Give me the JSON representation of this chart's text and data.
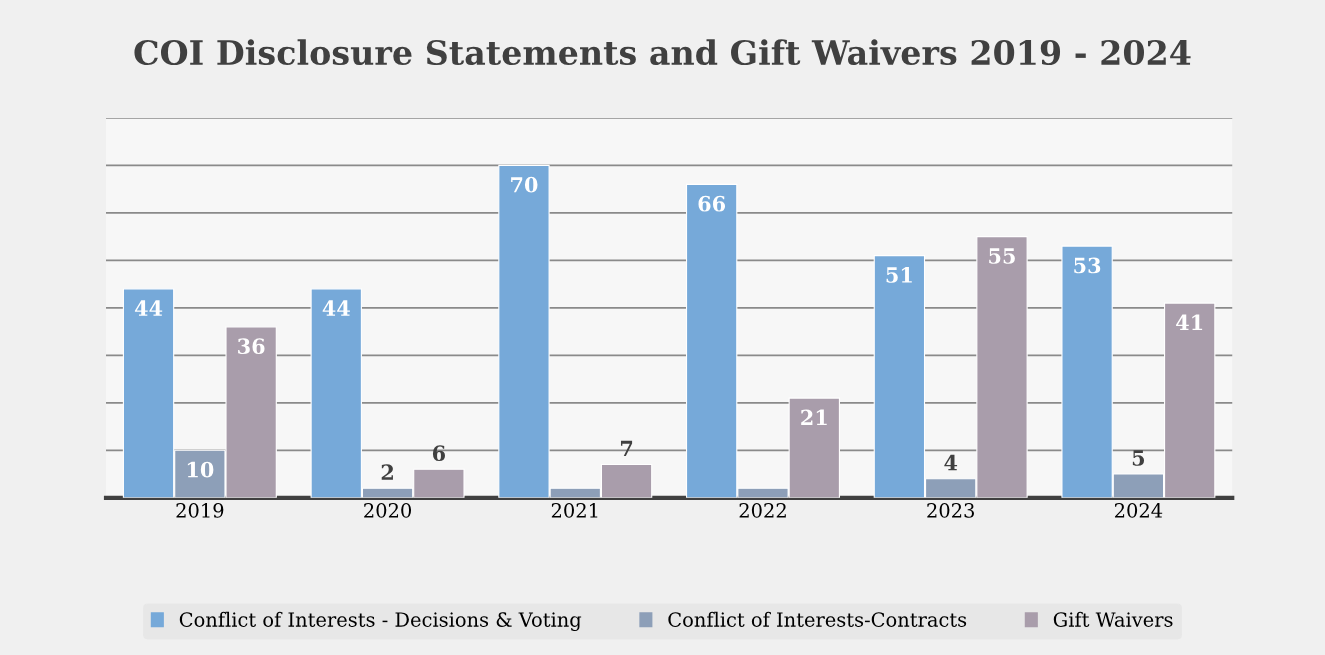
{
  "chart_data": {
    "type": "bar",
    "title": "COI Disclosure Statements and Gift Waivers 2019 - 2024",
    "categories": [
      "2019",
      "2020",
      "2021",
      "2022",
      "2023",
      "2024"
    ],
    "series": [
      {
        "name": "Conflict of Interests - Decisions & Voting",
        "color": "#76a9d9",
        "values": [
          44,
          44,
          70,
          66,
          51,
          53
        ],
        "value_labels": [
          "44",
          "44",
          "70",
          "66",
          "51",
          "53"
        ]
      },
      {
        "name": "Conflict of Interests-Contracts",
        "color": "#8d9fb8",
        "values": [
          10,
          2,
          2,
          2,
          4,
          5
        ],
        "value_labels": [
          "10",
          "2",
          null,
          null,
          "4",
          "5"
        ]
      },
      {
        "name": "Gift Waivers",
        "color": "#a99dab",
        "values": [
          36,
          6,
          7,
          21,
          55,
          41
        ],
        "value_labels": [
          "36",
          "6",
          "7",
          "21",
          "55",
          "41"
        ]
      }
    ],
    "ylim": [
      0,
      80
    ],
    "yticks": [
      {
        "value": 0,
        "label": null
      },
      {
        "value": 10,
        "label": null
      },
      {
        "value": 20,
        "label": null
      },
      {
        "value": 30,
        "label": null
      },
      {
        "value": 40,
        "label": null
      },
      {
        "value": 50,
        "label": null
      },
      {
        "value": 60,
        "label": null
      },
      {
        "value": 70,
        "label": null
      },
      {
        "value": 80,
        "label": null
      }
    ],
    "grid": "y",
    "legend": "bottom",
    "tick_labels": "x"
  }
}
